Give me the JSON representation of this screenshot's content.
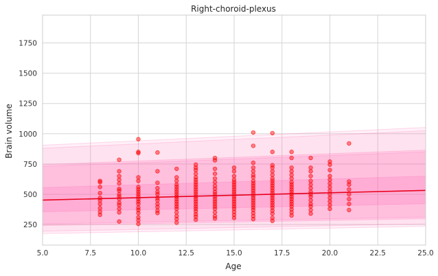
{
  "chart_data": {
    "type": "scatter",
    "title": "Right-choroid-plexus",
    "xlabel": "Age",
    "ylabel": "Brain volume",
    "xlim": [
      5.0,
      25.0
    ],
    "ylim": [
      80,
      1980
    ],
    "xticks": [
      "5.0",
      "7.5",
      "10.0",
      "12.5",
      "15.0",
      "17.5",
      "20.0",
      "22.5",
      "25.0"
    ],
    "xtick_values": [
      5.0,
      7.5,
      10.0,
      12.5,
      15.0,
      17.5,
      20.0,
      22.5,
      25.0
    ],
    "yticks": [
      "250",
      "500",
      "750",
      "1000",
      "1250",
      "1500",
      "1750"
    ],
    "ytick_values": [
      250,
      500,
      750,
      1000,
      1250,
      1500,
      1750
    ],
    "grid": true,
    "colors": {
      "points": "#ff0000",
      "fit_line": "#e8001c",
      "band": "#ff69b4"
    },
    "fit_line": {
      "x": [
        5.0,
        25.0
      ],
      "y": [
        452,
        532
      ]
    },
    "bands": [
      {
        "level": "outer",
        "lower_x": [
          5.0,
          25.0
        ],
        "lower_y": [
          175,
          235
        ],
        "upper_x": [
          5.0,
          25.0
        ],
        "upper_y": [
          905,
          1052
        ],
        "opacity": 0.1
      },
      {
        "level": "outer-2",
        "lower_x": [
          5.0,
          25.0
        ],
        "lower_y": [
          195,
          255
        ],
        "upper_x": [
          5.0,
          25.0
        ],
        "upper_y": [
          880,
          1025
        ],
        "opacity": 0.1
      },
      {
        "level": "mid",
        "lower_x": [
          5.0,
          25.0
        ],
        "lower_y": [
          242,
          298
        ],
        "upper_x": [
          5.0,
          25.0
        ],
        "upper_y": [
          745,
          865
        ],
        "opacity": 0.18
      },
      {
        "level": "mid-2",
        "lower_x": [
          5.0,
          25.0
        ],
        "lower_y": [
          255,
          312
        ],
        "upper_x": [
          5.0,
          25.0
        ],
        "upper_y": [
          730,
          850
        ],
        "opacity": 0.12
      },
      {
        "level": "inner",
        "lower_x": [
          5.0,
          25.0
        ],
        "lower_y": [
          355,
          422
        ],
        "upper_x": [
          5.0,
          25.0
        ],
        "upper_y": [
          555,
          650
        ],
        "opacity": 0.22
      }
    ],
    "points": [
      {
        "x": 8,
        "y": 610
      },
      {
        "x": 8,
        "y": 600
      },
      {
        "x": 8,
        "y": 560
      },
      {
        "x": 8,
        "y": 510
      },
      {
        "x": 8,
        "y": 470
      },
      {
        "x": 8,
        "y": 450
      },
      {
        "x": 8,
        "y": 420
      },
      {
        "x": 8,
        "y": 385
      },
      {
        "x": 8,
        "y": 355
      },
      {
        "x": 8,
        "y": 330
      },
      {
        "x": 9,
        "y": 785
      },
      {
        "x": 9,
        "y": 690
      },
      {
        "x": 9,
        "y": 650
      },
      {
        "x": 9,
        "y": 620
      },
      {
        "x": 9,
        "y": 590
      },
      {
        "x": 9,
        "y": 545
      },
      {
        "x": 9,
        "y": 530
      },
      {
        "x": 9,
        "y": 500
      },
      {
        "x": 9,
        "y": 480
      },
      {
        "x": 9,
        "y": 460
      },
      {
        "x": 9,
        "y": 430
      },
      {
        "x": 9,
        "y": 410
      },
      {
        "x": 9,
        "y": 380
      },
      {
        "x": 9,
        "y": 350
      },
      {
        "x": 9,
        "y": 275
      },
      {
        "x": 10,
        "y": 955
      },
      {
        "x": 10,
        "y": 850
      },
      {
        "x": 10,
        "y": 840
      },
      {
        "x": 10,
        "y": 640
      },
      {
        "x": 10,
        "y": 610
      },
      {
        "x": 10,
        "y": 560
      },
      {
        "x": 10,
        "y": 540
      },
      {
        "x": 10,
        "y": 520
      },
      {
        "x": 10,
        "y": 500
      },
      {
        "x": 10,
        "y": 480
      },
      {
        "x": 10,
        "y": 460
      },
      {
        "x": 10,
        "y": 440
      },
      {
        "x": 10,
        "y": 420
      },
      {
        "x": 10,
        "y": 390
      },
      {
        "x": 10,
        "y": 370
      },
      {
        "x": 10,
        "y": 345
      },
      {
        "x": 10,
        "y": 310
      },
      {
        "x": 10,
        "y": 285
      },
      {
        "x": 10,
        "y": 255
      },
      {
        "x": 11,
        "y": 845
      },
      {
        "x": 11,
        "y": 690
      },
      {
        "x": 11,
        "y": 595
      },
      {
        "x": 11,
        "y": 550
      },
      {
        "x": 11,
        "y": 520
      },
      {
        "x": 11,
        "y": 500
      },
      {
        "x": 11,
        "y": 470
      },
      {
        "x": 11,
        "y": 450
      },
      {
        "x": 11,
        "y": 420
      },
      {
        "x": 11,
        "y": 395
      },
      {
        "x": 11,
        "y": 365
      },
      {
        "x": 11,
        "y": 345
      },
      {
        "x": 12,
        "y": 710
      },
      {
        "x": 12,
        "y": 640
      },
      {
        "x": 12,
        "y": 610
      },
      {
        "x": 12,
        "y": 580
      },
      {
        "x": 12,
        "y": 560
      },
      {
        "x": 12,
        "y": 540
      },
      {
        "x": 12,
        "y": 520
      },
      {
        "x": 12,
        "y": 500
      },
      {
        "x": 12,
        "y": 480
      },
      {
        "x": 12,
        "y": 460
      },
      {
        "x": 12,
        "y": 440
      },
      {
        "x": 12,
        "y": 420
      },
      {
        "x": 12,
        "y": 400
      },
      {
        "x": 12,
        "y": 380
      },
      {
        "x": 12,
        "y": 350
      },
      {
        "x": 12,
        "y": 320
      },
      {
        "x": 12,
        "y": 295
      },
      {
        "x": 12,
        "y": 265
      },
      {
        "x": 13,
        "y": 745
      },
      {
        "x": 13,
        "y": 720
      },
      {
        "x": 13,
        "y": 700
      },
      {
        "x": 13,
        "y": 670
      },
      {
        "x": 13,
        "y": 640
      },
      {
        "x": 13,
        "y": 620
      },
      {
        "x": 13,
        "y": 600
      },
      {
        "x": 13,
        "y": 580
      },
      {
        "x": 13,
        "y": 560
      },
      {
        "x": 13,
        "y": 540
      },
      {
        "x": 13,
        "y": 520
      },
      {
        "x": 13,
        "y": 500
      },
      {
        "x": 13,
        "y": 480
      },
      {
        "x": 13,
        "y": 460
      },
      {
        "x": 13,
        "y": 440
      },
      {
        "x": 13,
        "y": 420
      },
      {
        "x": 13,
        "y": 400
      },
      {
        "x": 13,
        "y": 380
      },
      {
        "x": 13,
        "y": 360
      },
      {
        "x": 13,
        "y": 335
      },
      {
        "x": 13,
        "y": 315
      },
      {
        "x": 13,
        "y": 290
      },
      {
        "x": 14,
        "y": 800
      },
      {
        "x": 14,
        "y": 780
      },
      {
        "x": 14,
        "y": 710
      },
      {
        "x": 14,
        "y": 670
      },
      {
        "x": 14,
        "y": 630
      },
      {
        "x": 14,
        "y": 600
      },
      {
        "x": 14,
        "y": 570
      },
      {
        "x": 14,
        "y": 545
      },
      {
        "x": 14,
        "y": 520
      },
      {
        "x": 14,
        "y": 500
      },
      {
        "x": 14,
        "y": 480
      },
      {
        "x": 14,
        "y": 460
      },
      {
        "x": 14,
        "y": 440
      },
      {
        "x": 14,
        "y": 420
      },
      {
        "x": 14,
        "y": 400
      },
      {
        "x": 14,
        "y": 380
      },
      {
        "x": 14,
        "y": 350
      },
      {
        "x": 14,
        "y": 320
      },
      {
        "x": 14,
        "y": 300
      },
      {
        "x": 15,
        "y": 720
      },
      {
        "x": 15,
        "y": 690
      },
      {
        "x": 15,
        "y": 650
      },
      {
        "x": 15,
        "y": 620
      },
      {
        "x": 15,
        "y": 600
      },
      {
        "x": 15,
        "y": 580
      },
      {
        "x": 15,
        "y": 560
      },
      {
        "x": 15,
        "y": 540
      },
      {
        "x": 15,
        "y": 520
      },
      {
        "x": 15,
        "y": 500
      },
      {
        "x": 15,
        "y": 480
      },
      {
        "x": 15,
        "y": 460
      },
      {
        "x": 15,
        "y": 440
      },
      {
        "x": 15,
        "y": 420
      },
      {
        "x": 15,
        "y": 400
      },
      {
        "x": 15,
        "y": 380
      },
      {
        "x": 15,
        "y": 355
      },
      {
        "x": 15,
        "y": 330
      },
      {
        "x": 15,
        "y": 305
      },
      {
        "x": 16,
        "y": 1010
      },
      {
        "x": 16,
        "y": 900
      },
      {
        "x": 16,
        "y": 760
      },
      {
        "x": 16,
        "y": 720
      },
      {
        "x": 16,
        "y": 690
      },
      {
        "x": 16,
        "y": 660
      },
      {
        "x": 16,
        "y": 640
      },
      {
        "x": 16,
        "y": 610
      },
      {
        "x": 16,
        "y": 590
      },
      {
        "x": 16,
        "y": 570
      },
      {
        "x": 16,
        "y": 550
      },
      {
        "x": 16,
        "y": 530
      },
      {
        "x": 16,
        "y": 510
      },
      {
        "x": 16,
        "y": 490
      },
      {
        "x": 16,
        "y": 470
      },
      {
        "x": 16,
        "y": 450
      },
      {
        "x": 16,
        "y": 430
      },
      {
        "x": 16,
        "y": 410
      },
      {
        "x": 16,
        "y": 390
      },
      {
        "x": 16,
        "y": 370
      },
      {
        "x": 16,
        "y": 345
      },
      {
        "x": 16,
        "y": 320
      },
      {
        "x": 16,
        "y": 295
      },
      {
        "x": 17,
        "y": 1005
      },
      {
        "x": 17,
        "y": 850
      },
      {
        "x": 17,
        "y": 740
      },
      {
        "x": 17,
        "y": 720
      },
      {
        "x": 17,
        "y": 690
      },
      {
        "x": 17,
        "y": 660
      },
      {
        "x": 17,
        "y": 630
      },
      {
        "x": 17,
        "y": 610
      },
      {
        "x": 17,
        "y": 590
      },
      {
        "x": 17,
        "y": 570
      },
      {
        "x": 17,
        "y": 550
      },
      {
        "x": 17,
        "y": 530
      },
      {
        "x": 17,
        "y": 510
      },
      {
        "x": 17,
        "y": 490
      },
      {
        "x": 17,
        "y": 470
      },
      {
        "x": 17,
        "y": 450
      },
      {
        "x": 17,
        "y": 430
      },
      {
        "x": 17,
        "y": 410
      },
      {
        "x": 17,
        "y": 390
      },
      {
        "x": 17,
        "y": 365
      },
      {
        "x": 17,
        "y": 340
      },
      {
        "x": 17,
        "y": 305
      },
      {
        "x": 17,
        "y": 280
      },
      {
        "x": 18,
        "y": 850
      },
      {
        "x": 18,
        "y": 800
      },
      {
        "x": 18,
        "y": 720
      },
      {
        "x": 18,
        "y": 690
      },
      {
        "x": 18,
        "y": 660
      },
      {
        "x": 18,
        "y": 630
      },
      {
        "x": 18,
        "y": 600
      },
      {
        "x": 18,
        "y": 580
      },
      {
        "x": 18,
        "y": 560
      },
      {
        "x": 18,
        "y": 540
      },
      {
        "x": 18,
        "y": 520
      },
      {
        "x": 18,
        "y": 500
      },
      {
        "x": 18,
        "y": 480
      },
      {
        "x": 18,
        "y": 460
      },
      {
        "x": 18,
        "y": 440
      },
      {
        "x": 18,
        "y": 420
      },
      {
        "x": 18,
        "y": 400
      },
      {
        "x": 18,
        "y": 375
      },
      {
        "x": 18,
        "y": 350
      },
      {
        "x": 18,
        "y": 325
      },
      {
        "x": 19,
        "y": 800
      },
      {
        "x": 19,
        "y": 720
      },
      {
        "x": 19,
        "y": 690
      },
      {
        "x": 19,
        "y": 650
      },
      {
        "x": 19,
        "y": 610
      },
      {
        "x": 19,
        "y": 580
      },
      {
        "x": 19,
        "y": 550
      },
      {
        "x": 19,
        "y": 520
      },
      {
        "x": 19,
        "y": 500
      },
      {
        "x": 19,
        "y": 480
      },
      {
        "x": 19,
        "y": 450
      },
      {
        "x": 19,
        "y": 420
      },
      {
        "x": 19,
        "y": 400
      },
      {
        "x": 19,
        "y": 370
      },
      {
        "x": 19,
        "y": 340
      },
      {
        "x": 20,
        "y": 770
      },
      {
        "x": 20,
        "y": 745
      },
      {
        "x": 20,
        "y": 700
      },
      {
        "x": 20,
        "y": 650
      },
      {
        "x": 20,
        "y": 620
      },
      {
        "x": 20,
        "y": 590
      },
      {
        "x": 20,
        "y": 560
      },
      {
        "x": 20,
        "y": 530
      },
      {
        "x": 20,
        "y": 500
      },
      {
        "x": 20,
        "y": 470
      },
      {
        "x": 20,
        "y": 440
      },
      {
        "x": 20,
        "y": 410
      },
      {
        "x": 20,
        "y": 380
      },
      {
        "x": 21,
        "y": 920
      },
      {
        "x": 21,
        "y": 605
      },
      {
        "x": 21,
        "y": 580
      },
      {
        "x": 21,
        "y": 540
      },
      {
        "x": 21,
        "y": 500
      },
      {
        "x": 21,
        "y": 460
      },
      {
        "x": 21,
        "y": 420
      },
      {
        "x": 21,
        "y": 370
      }
    ]
  }
}
